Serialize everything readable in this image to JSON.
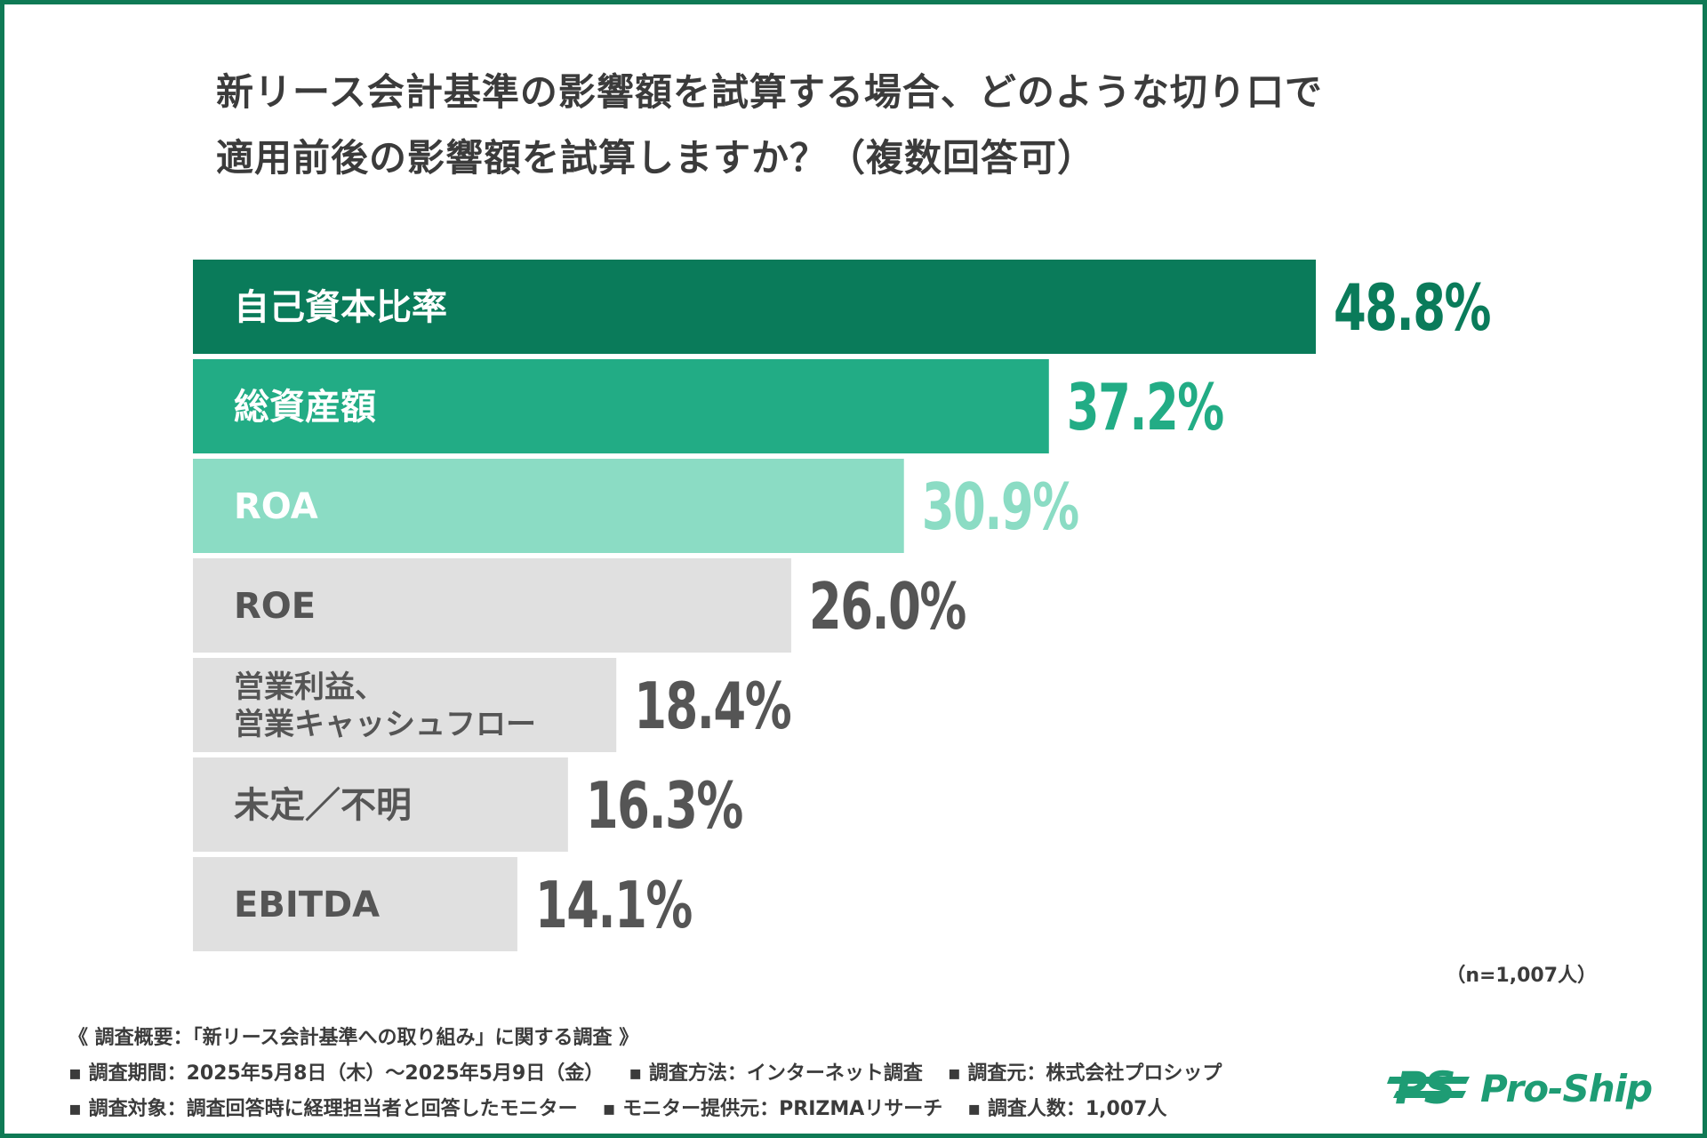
{
  "title": {
    "line1": "新リース会計基準の影響額を試算する場合、どのような切り口で",
    "line2": "適用前後の影響額を試算しますか？（複数回答可）"
  },
  "chart_data": {
    "type": "bar",
    "orientation": "horizontal",
    "title": "新リース会計基準の影響額を試算する場合、どのような切り口で適用前後の影響額を試算しますか？（複数回答可）",
    "unit": "%",
    "categories": [
      "自己資本比率",
      "総資産額",
      "ROA",
      "ROE",
      "営業利益、\n営業キャッシュフロー",
      "未定／不明",
      "EBITDA"
    ],
    "values": [
      48.8,
      37.2,
      30.9,
      26.0,
      18.4,
      16.3,
      14.1
    ],
    "value_labels": [
      "48.8%",
      "37.2%",
      "30.9%",
      "26.0%",
      "18.4%",
      "16.3%",
      "14.1%"
    ],
    "bar_colors": [
      "#0a7b5a",
      "#22ac85",
      "#8bdcc4",
      "#e0e0e0",
      "#e0e0e0",
      "#e0e0e0",
      "#e0e0e0"
    ],
    "label_colors": [
      "#ffffff",
      "#ffffff",
      "#ffffff",
      "#555555",
      "#555555",
      "#555555",
      "#555555"
    ],
    "value_colors": [
      "#0a7b5a",
      "#22ac85",
      "#8bdcc4",
      "#555555",
      "#555555",
      "#555555",
      "#555555"
    ],
    "xlim": [
      0,
      50
    ],
    "grid": false,
    "legend": "none"
  },
  "sample": "（n=1,007人）",
  "footer": {
    "heading": "《 調査概要：「新リース会計基準への取り組み」に関する調査 》",
    "period": "▪ 調査期間：2025年5月8日（木）〜2025年5月9日（金）",
    "method": "▪ 調査方法：インターネット調査",
    "source": "▪ 調査元：株式会社プロシップ",
    "target": "▪ 調査対象：調査回答時に経理担当者と回答したモニター",
    "provider": "▪ モニター提供元：PRIZMAリサーチ",
    "count": "▪ 調査人数：1,007人"
  },
  "logo": {
    "text": "Pro-Ship",
    "mark": "PS",
    "color": "#1e9c74"
  }
}
